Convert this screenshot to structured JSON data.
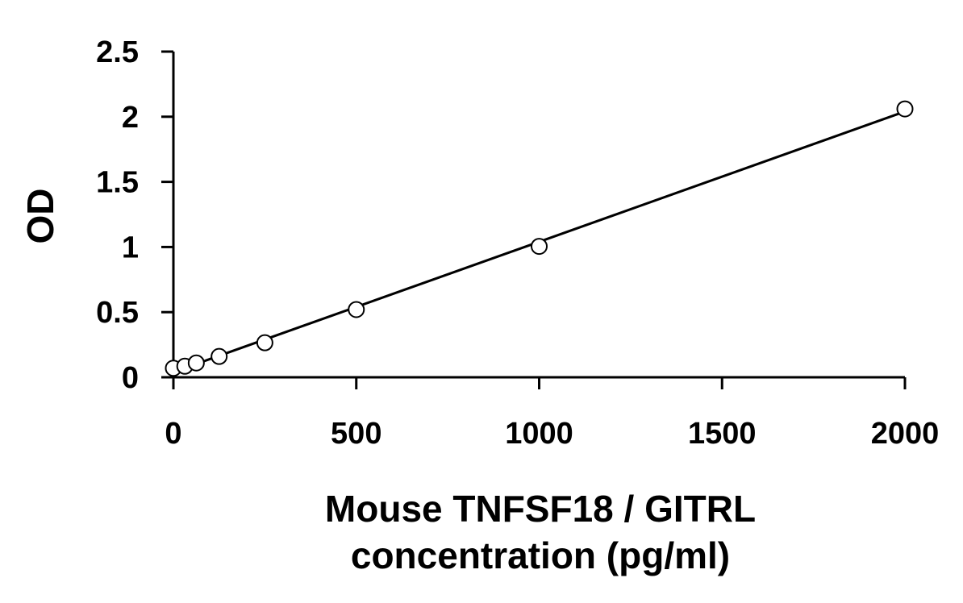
{
  "chart_data": {
    "type": "scatter",
    "title": "",
    "xlabel_lines": [
      "Mouse TNFSF18 / GITRL",
      "concentration (pg/ml)"
    ],
    "ylabel": "OD",
    "xlim": [
      0,
      2000
    ],
    "ylim": [
      0,
      2.5
    ],
    "x_ticks": [
      "0",
      "500",
      "1000",
      "1500",
      "2000"
    ],
    "y_ticks": [
      "0",
      "0.5",
      "1",
      "1.5",
      "2",
      "2.5"
    ],
    "grid": false,
    "legend": "none",
    "series": [
      {
        "marker": "open-circle",
        "points": [
          {
            "x": 0,
            "y": 0.07
          },
          {
            "x": 31.25,
            "y": 0.085
          },
          {
            "x": 62.5,
            "y": 0.11
          },
          {
            "x": 125,
            "y": 0.16
          },
          {
            "x": 250,
            "y": 0.265
          },
          {
            "x": 500,
            "y": 0.52
          },
          {
            "x": 1000,
            "y": 1.005
          },
          {
            "x": 2000,
            "y": 2.06
          }
        ]
      }
    ],
    "trendline": {
      "type": "linear",
      "from": {
        "x": 0,
        "y": 0.04
      },
      "to": {
        "x": 2000,
        "y": 2.04
      }
    }
  }
}
